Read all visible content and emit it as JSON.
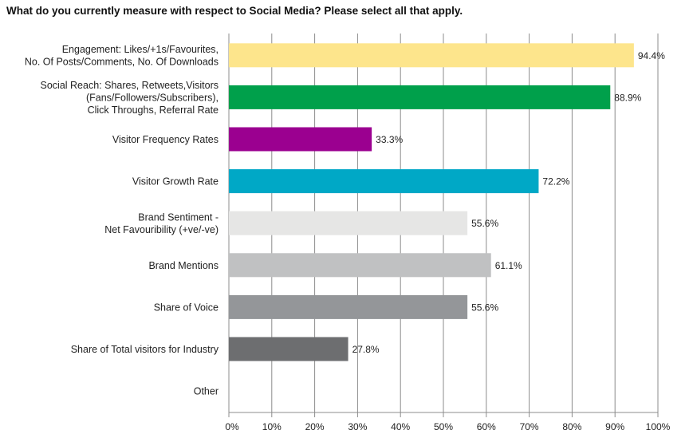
{
  "chart_data": {
    "type": "bar",
    "orientation": "horizontal",
    "title": "What do you currently measure with respect to Social Media? Please select all that apply.",
    "categories": [
      [
        "Engagement: Likes/+1s/Favourites,",
        "No. Of Posts/Comments, No. Of Downloads"
      ],
      [
        "Social Reach: Shares, Retweets,Visitors",
        "(Fans/Followers/Subscribers),",
        "Click Throughs, Referral Rate"
      ],
      [
        "Visitor Frequency Rates"
      ],
      [
        "Visitor Growth Rate"
      ],
      [
        "Brand Sentiment -",
        "Net Favouribility (+ve/-ve)"
      ],
      [
        "Brand Mentions"
      ],
      [
        "Share of Voice"
      ],
      [
        "Share of Total visitors for Industry"
      ],
      [
        "Other"
      ]
    ],
    "values": [
      94.4,
      88.9,
      33.3,
      72.2,
      55.6,
      61.1,
      55.6,
      27.8,
      null
    ],
    "value_labels": [
      "94.4%",
      "88.9%",
      "33.3%",
      "72.2%",
      "55.6%",
      "61.1%",
      "55.6%",
      "27.8%",
      ""
    ],
    "colors": [
      "#fde58c",
      "#00a04b",
      "#9b0090",
      "#00a8c6",
      "#e6e6e5",
      "#c0c1c2",
      "#949699",
      "#6d6e70",
      "#ffffff"
    ],
    "xlim": [
      0,
      100
    ],
    "xticks": [
      "0%",
      "10%",
      "20%",
      "30%",
      "40%",
      "50%",
      "60%",
      "70%",
      "80%",
      "90%",
      "100%"
    ],
    "grid": true,
    "gridline_color": "#8c8c8c",
    "xlabel": "",
    "ylabel": ""
  }
}
